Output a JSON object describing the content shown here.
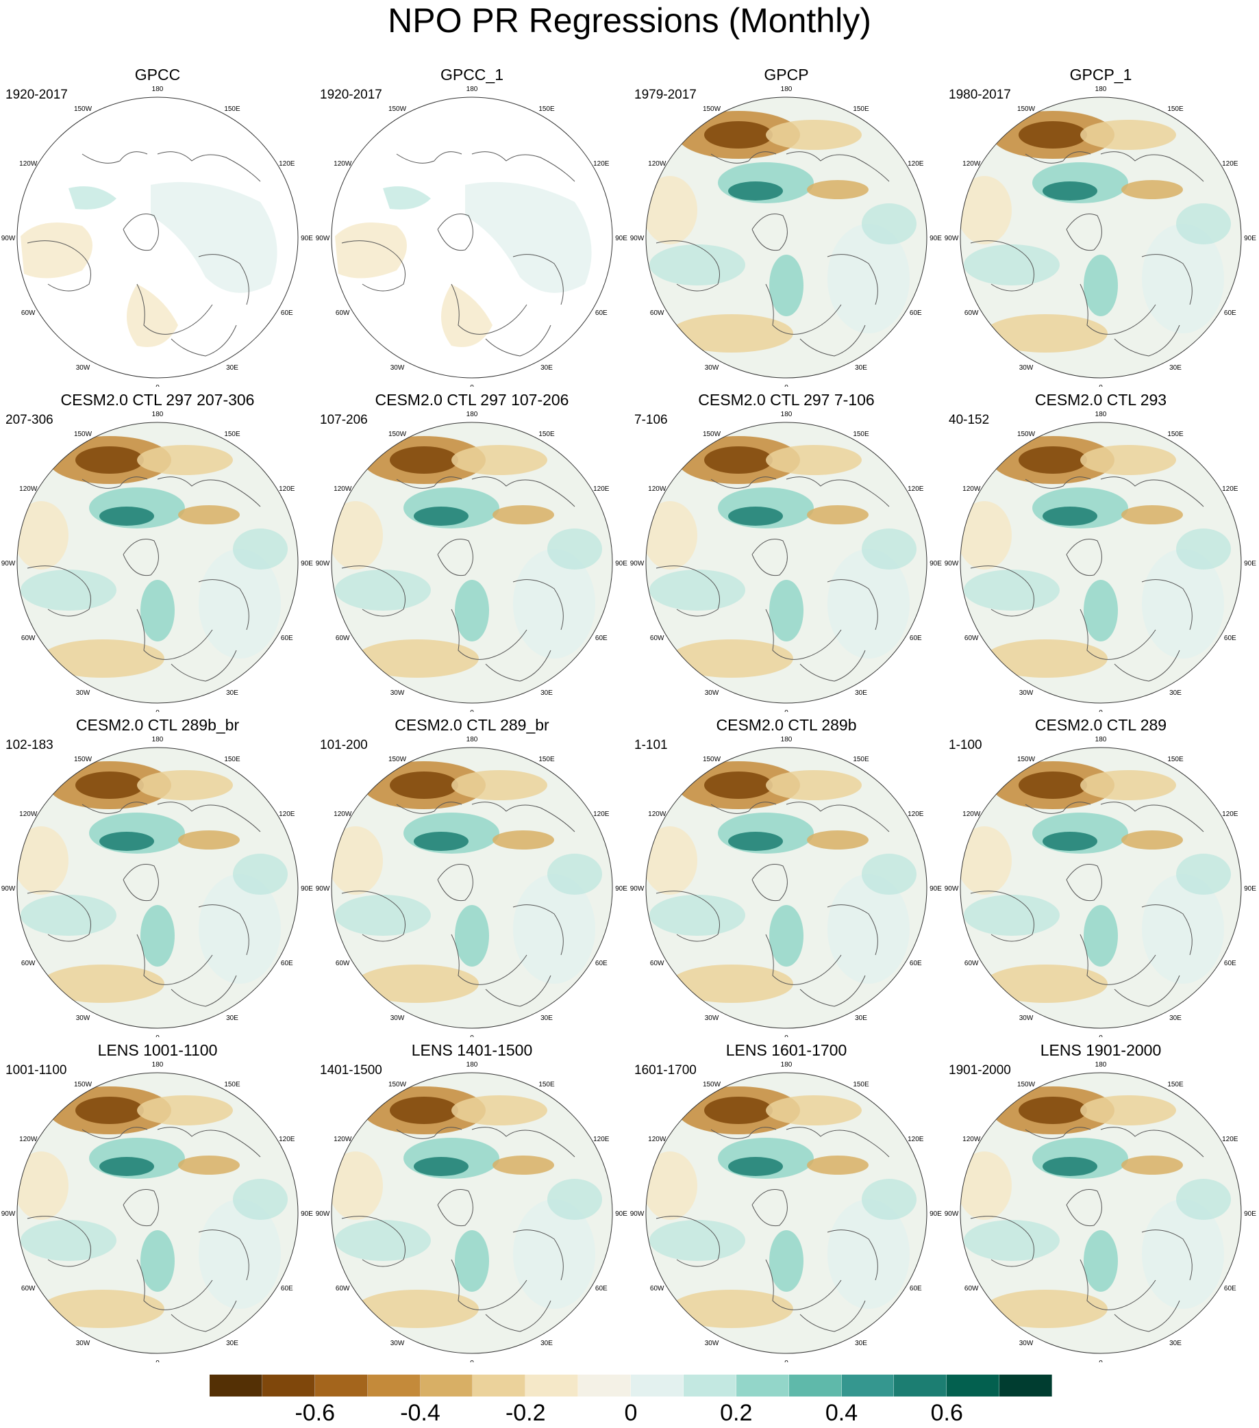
{
  "title": "NPO PR Regressions (Monthly)",
  "panels": [
    {
      "title": "GPCC",
      "years": "1920-2017",
      "pattern": "gpcc"
    },
    {
      "title": "GPCC_1",
      "years": "1920-2017",
      "pattern": "gpcc"
    },
    {
      "title": "GPCP",
      "years": "1979-2017",
      "pattern": "gpcp"
    },
    {
      "title": "GPCP_1",
      "years": "1980-2017",
      "pattern": "gpcp"
    },
    {
      "title": "CESM2.0 CTL 297 207-306",
      "years": "207-306",
      "pattern": "model"
    },
    {
      "title": "CESM2.0 CTL 297 107-206",
      "years": "107-206",
      "pattern": "model"
    },
    {
      "title": "CESM2.0 CTL 297 7-106",
      "years": "7-106",
      "pattern": "model"
    },
    {
      "title": "CESM2.0 CTL 293",
      "years": "40-152",
      "pattern": "model"
    },
    {
      "title": "CESM2.0 CTL 289b_br",
      "years": "102-183",
      "pattern": "model"
    },
    {
      "title": "CESM2.0 CTL 289_br",
      "years": "101-200",
      "pattern": "model"
    },
    {
      "title": "CESM2.0 CTL 289b",
      "years": "1-101",
      "pattern": "model"
    },
    {
      "title": "CESM2.0 CTL 289",
      "years": "1-100",
      "pattern": "model"
    },
    {
      "title": "LENS 1001-1100",
      "years": "1001-1100",
      "pattern": "model"
    },
    {
      "title": "LENS 1401-1500",
      "years": "1401-1500",
      "pattern": "model"
    },
    {
      "title": "LENS 1601-1700",
      "years": "1601-1700",
      "pattern": "model"
    },
    {
      "title": "LENS 1901-2000",
      "years": "1901-2000",
      "pattern": "model"
    }
  ],
  "longitude_labels": [
    "180",
    "150E",
    "120E",
    "90E",
    "60E",
    "30E",
    "0",
    "30W",
    "60W",
    "90W",
    "120W",
    "150W"
  ],
  "colorbar": {
    "colors": [
      "#543005",
      "#7f470b",
      "#a4651c",
      "#c48a3a",
      "#d8af65",
      "#ebd29b",
      "#f5e8c8",
      "#f4f1e6",
      "#e3f1ef",
      "#c3e8e1",
      "#93d6c9",
      "#5fb9aa",
      "#35978f",
      "#1c7e72",
      "#03604f",
      "#003d30"
    ],
    "tick_labels": [
      "-0.6",
      "-0.4",
      "-0.2",
      "0",
      "0.2",
      "0.4",
      "0.6"
    ],
    "tick_boundaries": [
      2,
      4,
      6,
      8,
      10,
      12,
      14
    ]
  },
  "colors": {
    "neutral_fill": "#eef3ec",
    "dry": "#c48a3a",
    "wet": "#35978f",
    "coast": "#555555"
  }
}
